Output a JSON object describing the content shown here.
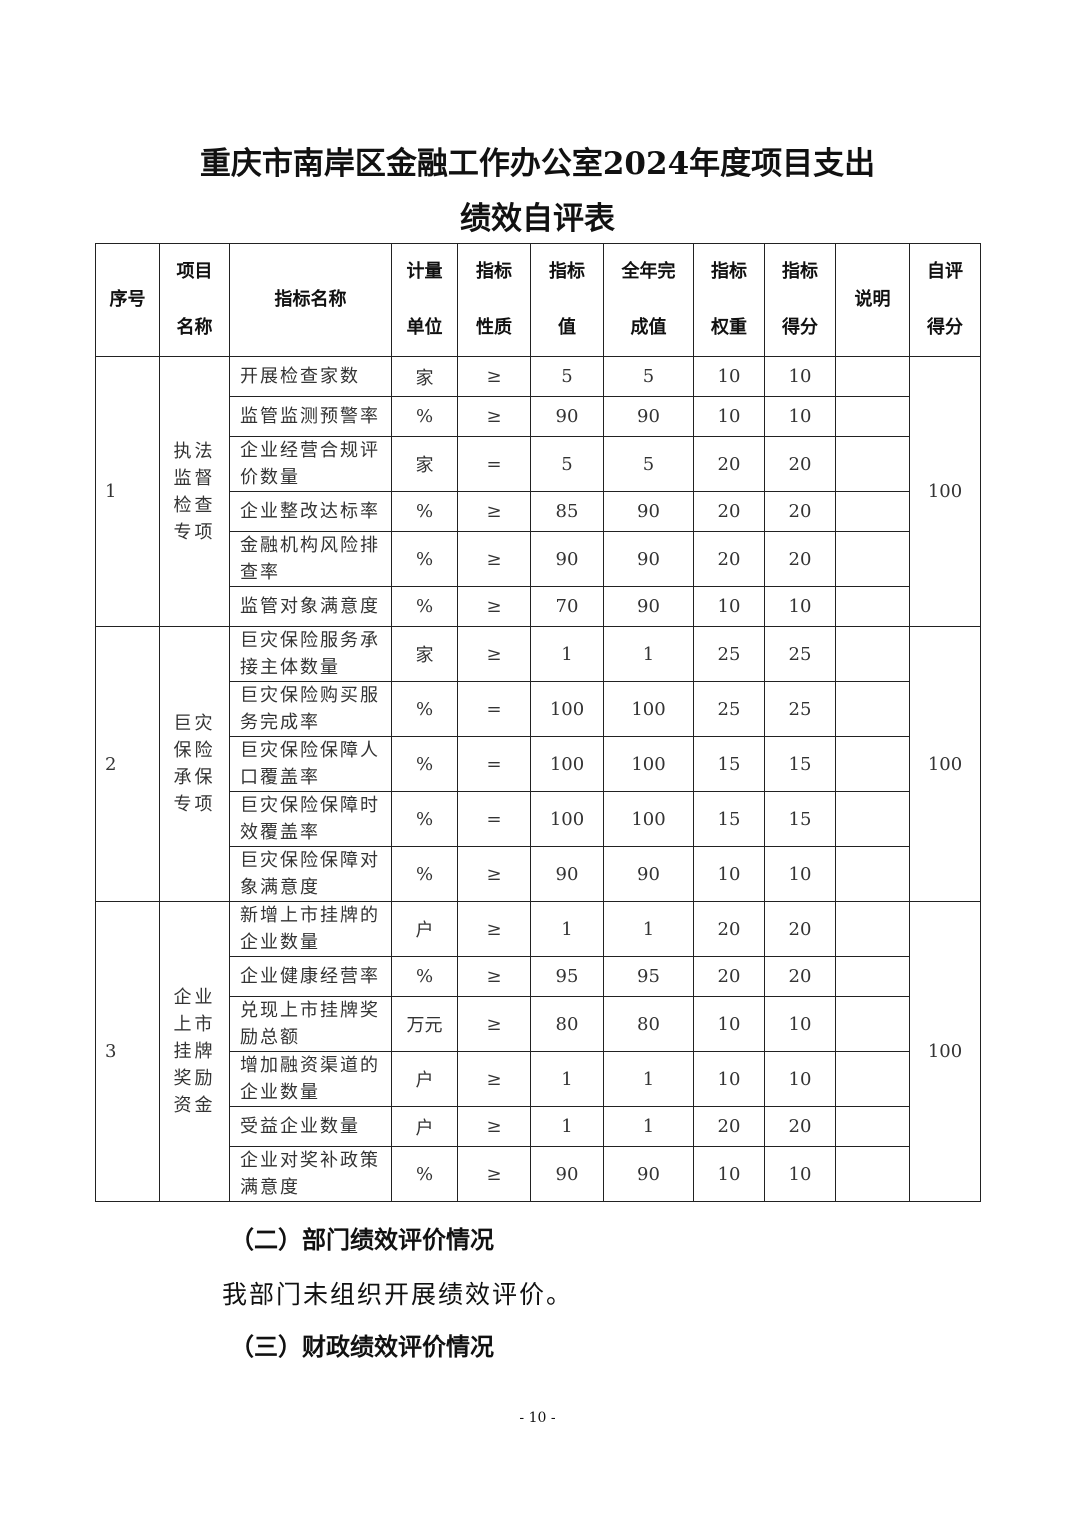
{
  "title_line1": "重庆市南岸区金融工作办公室2024年度项目支出",
  "title_line2": "绩效自评表",
  "headers": [
    "序号",
    "项目\n名称",
    "指标名称",
    "计量\n单位",
    "指标\n性质",
    "指标\n值",
    "全年完\n成值",
    "指标\n权重",
    "指标\n得分",
    "说明",
    "自评\n得分"
  ],
  "groups": [
    {
      "seq": "1",
      "project": "执法监督检查专项",
      "score": "100",
      "rows": [
        [
          "开展检查家数",
          "家",
          "≥",
          "5",
          "5",
          "10",
          "10"
        ],
        [
          "监管监测预警率",
          "%",
          "≥",
          "90",
          "90",
          "10",
          "10"
        ],
        [
          "企业经营合规评价数量",
          "家",
          "=",
          "5",
          "5",
          "20",
          "20"
        ],
        [
          "企业整改达标率",
          "%",
          "≥",
          "85",
          "90",
          "20",
          "20"
        ],
        [
          "金融机构风险排查率",
          "%",
          "≥",
          "90",
          "90",
          "20",
          "20"
        ],
        [
          "监管对象满意度",
          "%",
          "≥",
          "70",
          "90",
          "10",
          "10"
        ]
      ]
    },
    {
      "seq": "2",
      "project": "巨灾保险承保专项",
      "score": "100",
      "rows": [
        [
          "巨灾保险服务承接主体数量",
          "家",
          "≥",
          "1",
          "1",
          "25",
          "25"
        ],
        [
          "巨灾保险购买服务完成率",
          "%",
          "=",
          "100",
          "100",
          "25",
          "25"
        ],
        [
          "巨灾保险保障人口覆盖率",
          "%",
          "=",
          "100",
          "100",
          "15",
          "15"
        ],
        [
          "巨灾保险保障时效覆盖率",
          "%",
          "=",
          "100",
          "100",
          "15",
          "15"
        ],
        [
          "巨灾保险保障对象满意度",
          "%",
          "≥",
          "90",
          "90",
          "10",
          "10"
        ]
      ]
    },
    {
      "seq": "3",
      "project": "企业上市挂牌奖励资金",
      "score": "100",
      "rows": [
        [
          "新增上市挂牌的企业数量",
          "户",
          "≥",
          "1",
          "1",
          "20",
          "20"
        ],
        [
          "企业健康经营率",
          "%",
          "≥",
          "95",
          "95",
          "20",
          "20"
        ],
        [
          "兑现上市挂牌奖励总额",
          "万元",
          "≥",
          "80",
          "80",
          "10",
          "10"
        ],
        [
          "增加融资渠道的企业数量",
          "户",
          "≥",
          "1",
          "1",
          "10",
          "10"
        ],
        [
          "受益企业数量",
          "户",
          "≥",
          "1",
          "1",
          "20",
          "20"
        ],
        [
          "企业对奖补政策满意度",
          "%",
          "≥",
          "90",
          "90",
          "10",
          "10"
        ]
      ]
    }
  ],
  "section2_heading": "（二）部门绩效评价情况",
  "section2_text": "我部门未组织开展绩效评价。",
  "section3_heading": "（三）财政绩效评价情况",
  "page_number": "- 10 -"
}
